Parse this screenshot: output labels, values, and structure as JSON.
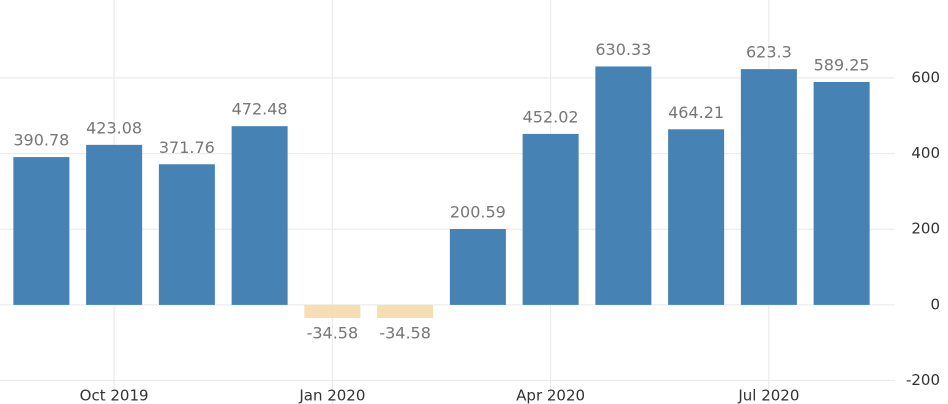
{
  "chart_data": {
    "type": "bar",
    "categories": [
      null,
      "Oct 2019",
      null,
      null,
      "Jan 2020",
      null,
      null,
      "Apr 2020",
      null,
      null,
      "Jul 2020",
      null
    ],
    "values": [
      390.78,
      423.08,
      371.76,
      472.48,
      -34.58,
      -34.58,
      200.59,
      452.02,
      630.33,
      464.21,
      623.3,
      589.25
    ],
    "color": "#4682b4",
    "negative_color": "#f5deb3",
    "ylim": [
      -262,
      806
    ],
    "yticks": [
      -200,
      0,
      200,
      400,
      600
    ],
    "grid": true
  }
}
